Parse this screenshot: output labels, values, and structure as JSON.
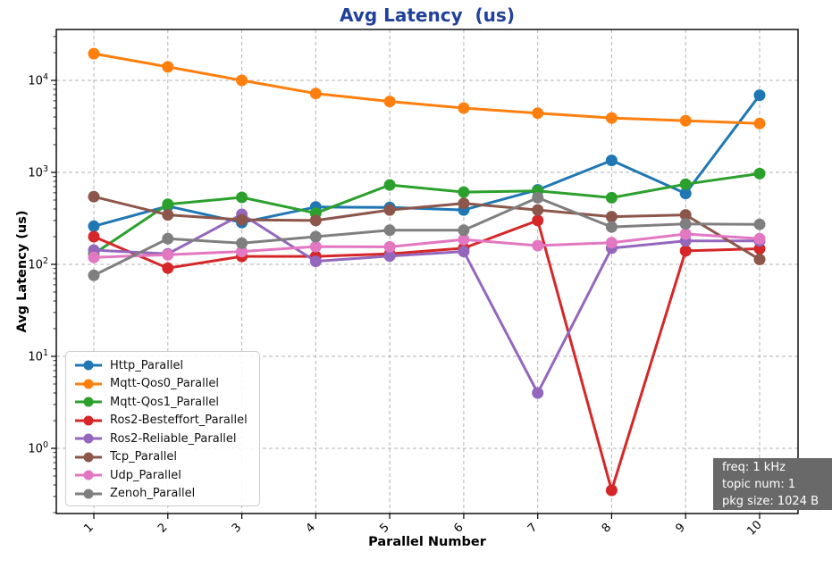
{
  "title": "Avg Latency  (us)",
  "xlabel": "Parallel Number",
  "ylabel": "Avg Latency (us)",
  "colors": {
    "title": "#21409a",
    "grid": "#b3b3b3",
    "spine": "#000000",
    "annotation_bg": "#696969",
    "annotation_fg": "#ffffff"
  },
  "annotation": {
    "lines": [
      "freq: 1 kHz",
      "topic num: 1",
      "pkg size: 1024 B"
    ]
  },
  "chart_data": {
    "type": "line",
    "title": "Avg Latency  (us)",
    "xlabel": "Parallel Number",
    "ylabel": "Avg Latency (us)",
    "x": [
      1,
      2,
      3,
      4,
      5,
      6,
      7,
      8,
      9,
      10
    ],
    "x_ticklabels": [
      "1",
      "2",
      "3",
      "4",
      "5",
      "6",
      "7",
      "8",
      "9",
      "10"
    ],
    "x_tick_rotation": 45,
    "y_scale": "log",
    "y_tick_exponents": [
      0,
      1,
      2,
      3,
      4
    ],
    "ylim": [
      0.2,
      35000
    ],
    "grid": "dashed",
    "marker": "circle",
    "legend_position": "lower left",
    "series": [
      {
        "name": "Http_Parallel",
        "color": "#1f77b4",
        "values": [
          260,
          430,
          285,
          420,
          415,
          390,
          645,
          1350,
          590,
          6900
        ]
      },
      {
        "name": "Mqtt-Qos0_Parallel",
        "color": "#ff7f0e",
        "values": [
          19500,
          14000,
          10000,
          7200,
          5900,
          5000,
          4400,
          3900,
          3650,
          3400
        ]
      },
      {
        "name": "Mqtt-Qos1_Parallel",
        "color": "#2ca02c",
        "values": [
          130,
          450,
          535,
          360,
          730,
          610,
          630,
          530,
          745,
          970
        ]
      },
      {
        "name": "Ros2-Besteffort_Parallel",
        "color": "#d62728",
        "values": [
          200,
          91,
          122,
          122,
          130,
          150,
          300,
          0.35,
          140,
          148
        ]
      },
      {
        "name": "Ros2-Reliable_Parallel",
        "color": "#9467bd",
        "values": [
          143,
          130,
          350,
          108,
          123,
          138,
          4,
          150,
          180,
          180
        ]
      },
      {
        "name": "Tcp_Parallel",
        "color": "#8c564b",
        "values": [
          545,
          345,
          305,
          300,
          390,
          460,
          390,
          330,
          345,
          113
        ]
      },
      {
        "name": "Udp_Parallel",
        "color": "#e377c2",
        "values": [
          119,
          127,
          138,
          156,
          155,
          186,
          160,
          172,
          214,
          190
        ]
      },
      {
        "name": "Zenoh_Parallel",
        "color": "#7f7f7f",
        "values": [
          76,
          190,
          170,
          200,
          235,
          235,
          530,
          255,
          275,
          272
        ]
      }
    ]
  }
}
